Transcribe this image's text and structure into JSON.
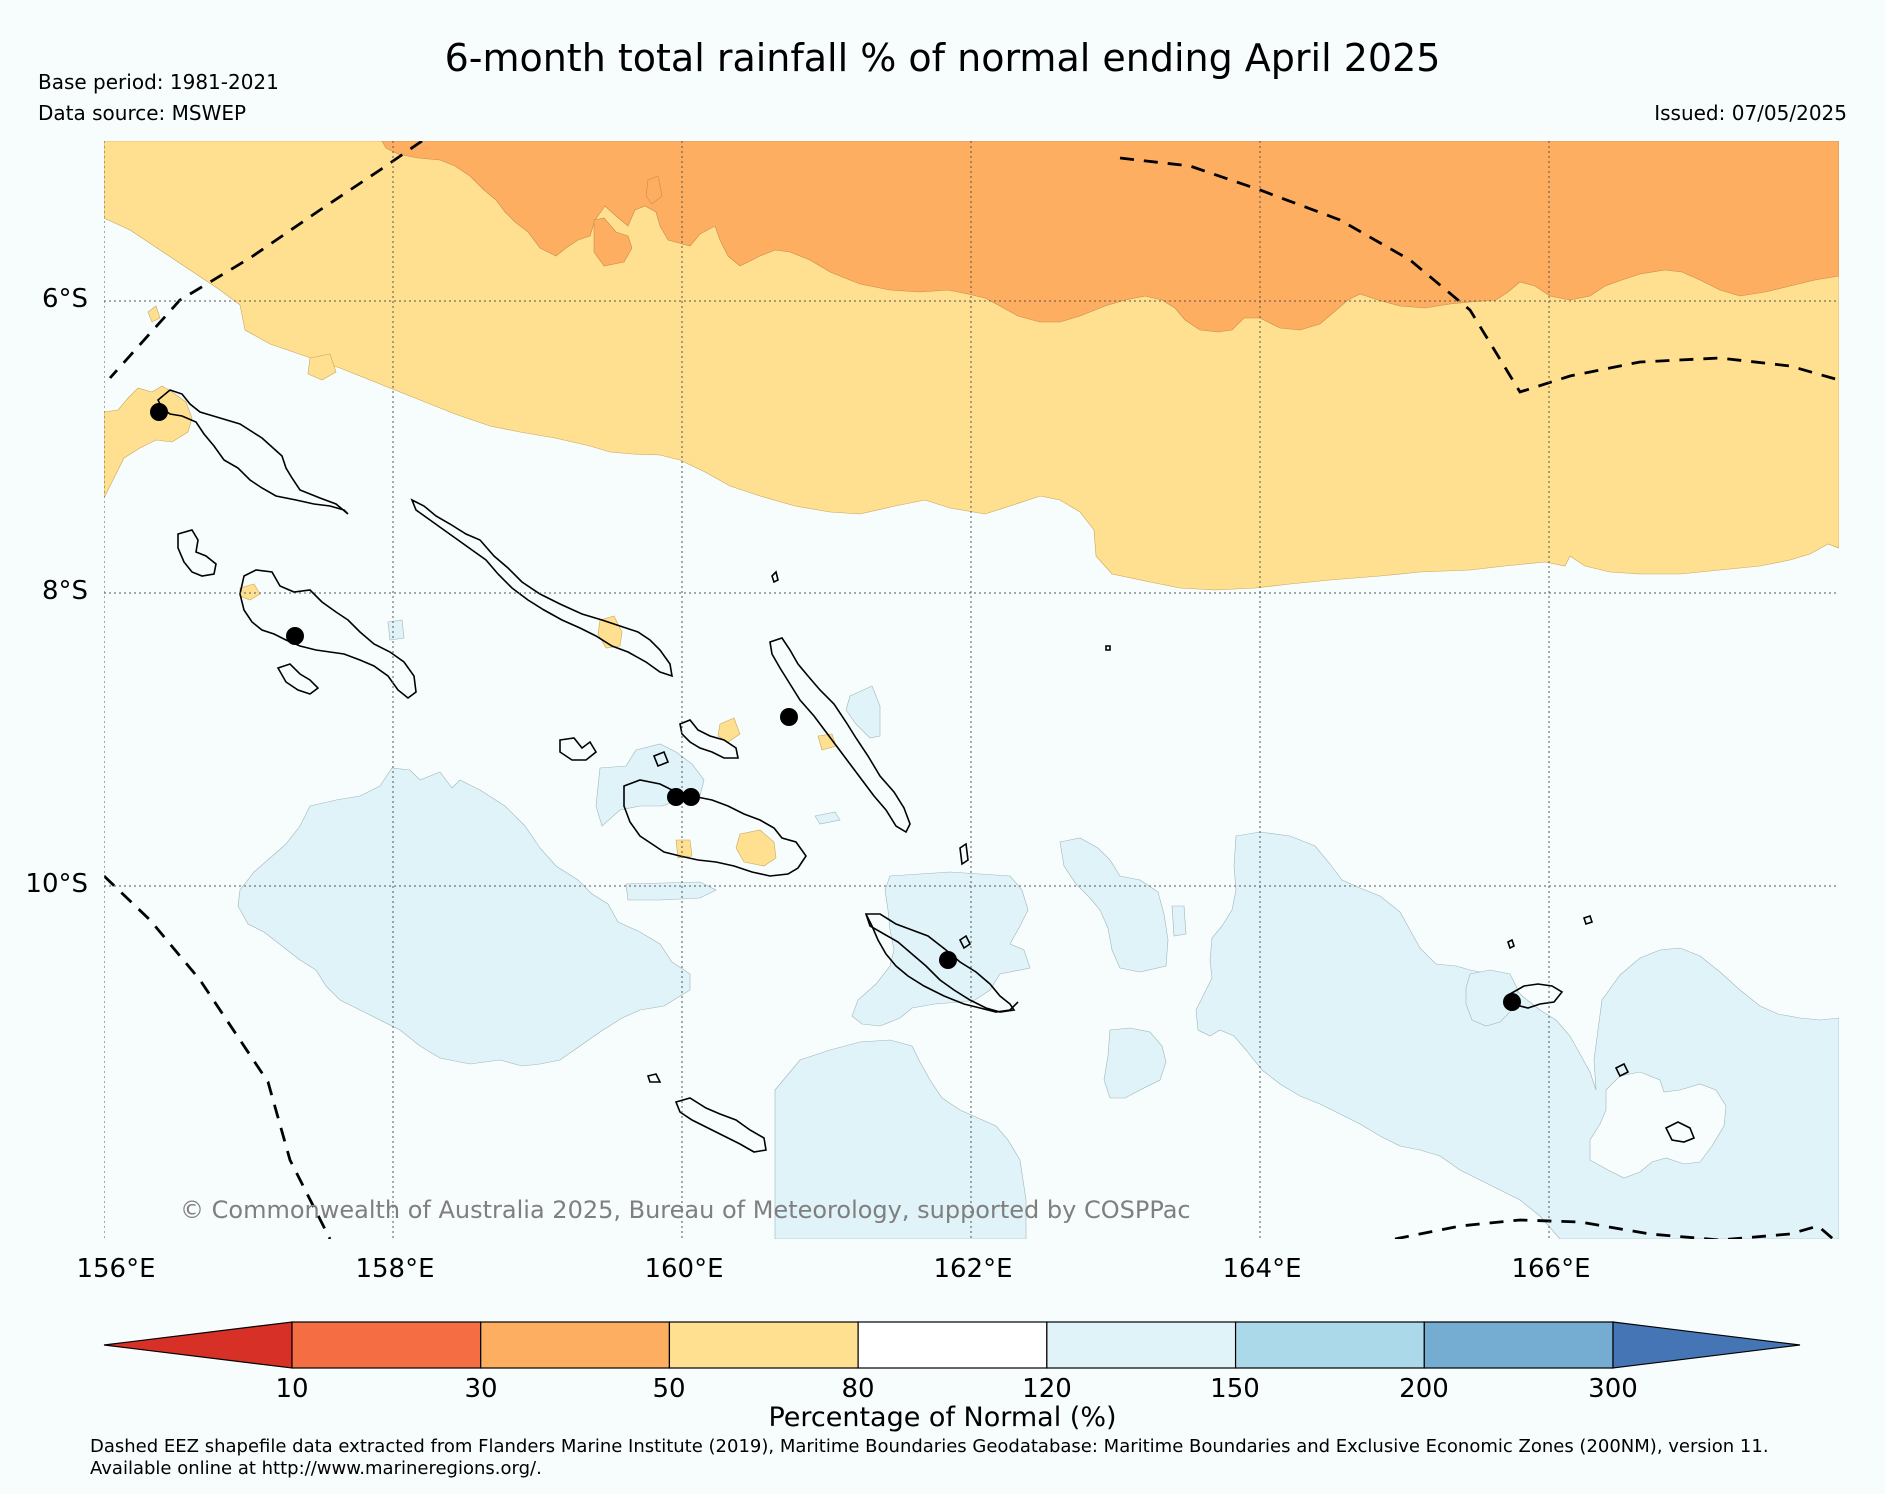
{
  "title": "6-month total rainfall % of normal ending April 2025",
  "base_period": "Base period: 1981-2021",
  "data_source": "Data source: MSWEP",
  "issued": "Issued: 07/05/2025",
  "map": {
    "latitude_labels": [
      "6°S",
      "8°S",
      "10°S"
    ],
    "longitude_labels": [
      "156°E",
      "158°E",
      "160°E",
      "162°E",
      "164°E",
      "166°E"
    ],
    "copyright": "© Commonwealth of Australia 2025, Bureau of Meteorology, supported by COSPPac",
    "colors": {
      "ocean_background": "#f7fcfd",
      "below_30_50": "#fdae61",
      "below_50_80": "#fee090",
      "above_120_150": "#e0f3f8",
      "coastline": "#000000"
    }
  },
  "colorbar": {
    "ticks": [
      "10",
      "30",
      "50",
      "80",
      "120",
      "150",
      "200",
      "300"
    ],
    "label": "Percentage of Normal (%)",
    "colors": [
      "#d73027",
      "#f46d43",
      "#fdae61",
      "#fee090",
      "#ffffff",
      "#e0f3f8",
      "#abd9e9",
      "#74add1",
      "#4575b4"
    ]
  },
  "footnote": {
    "line1": "Dashed EEZ shapefile data extracted from Flanders Marine Institute (2019), Maritime Boundaries Geodatabase: Maritime Boundaries and Exclusive Economic Zones (200NM), version 11.",
    "line2": "Available online at http://www.marineregions.org/."
  }
}
